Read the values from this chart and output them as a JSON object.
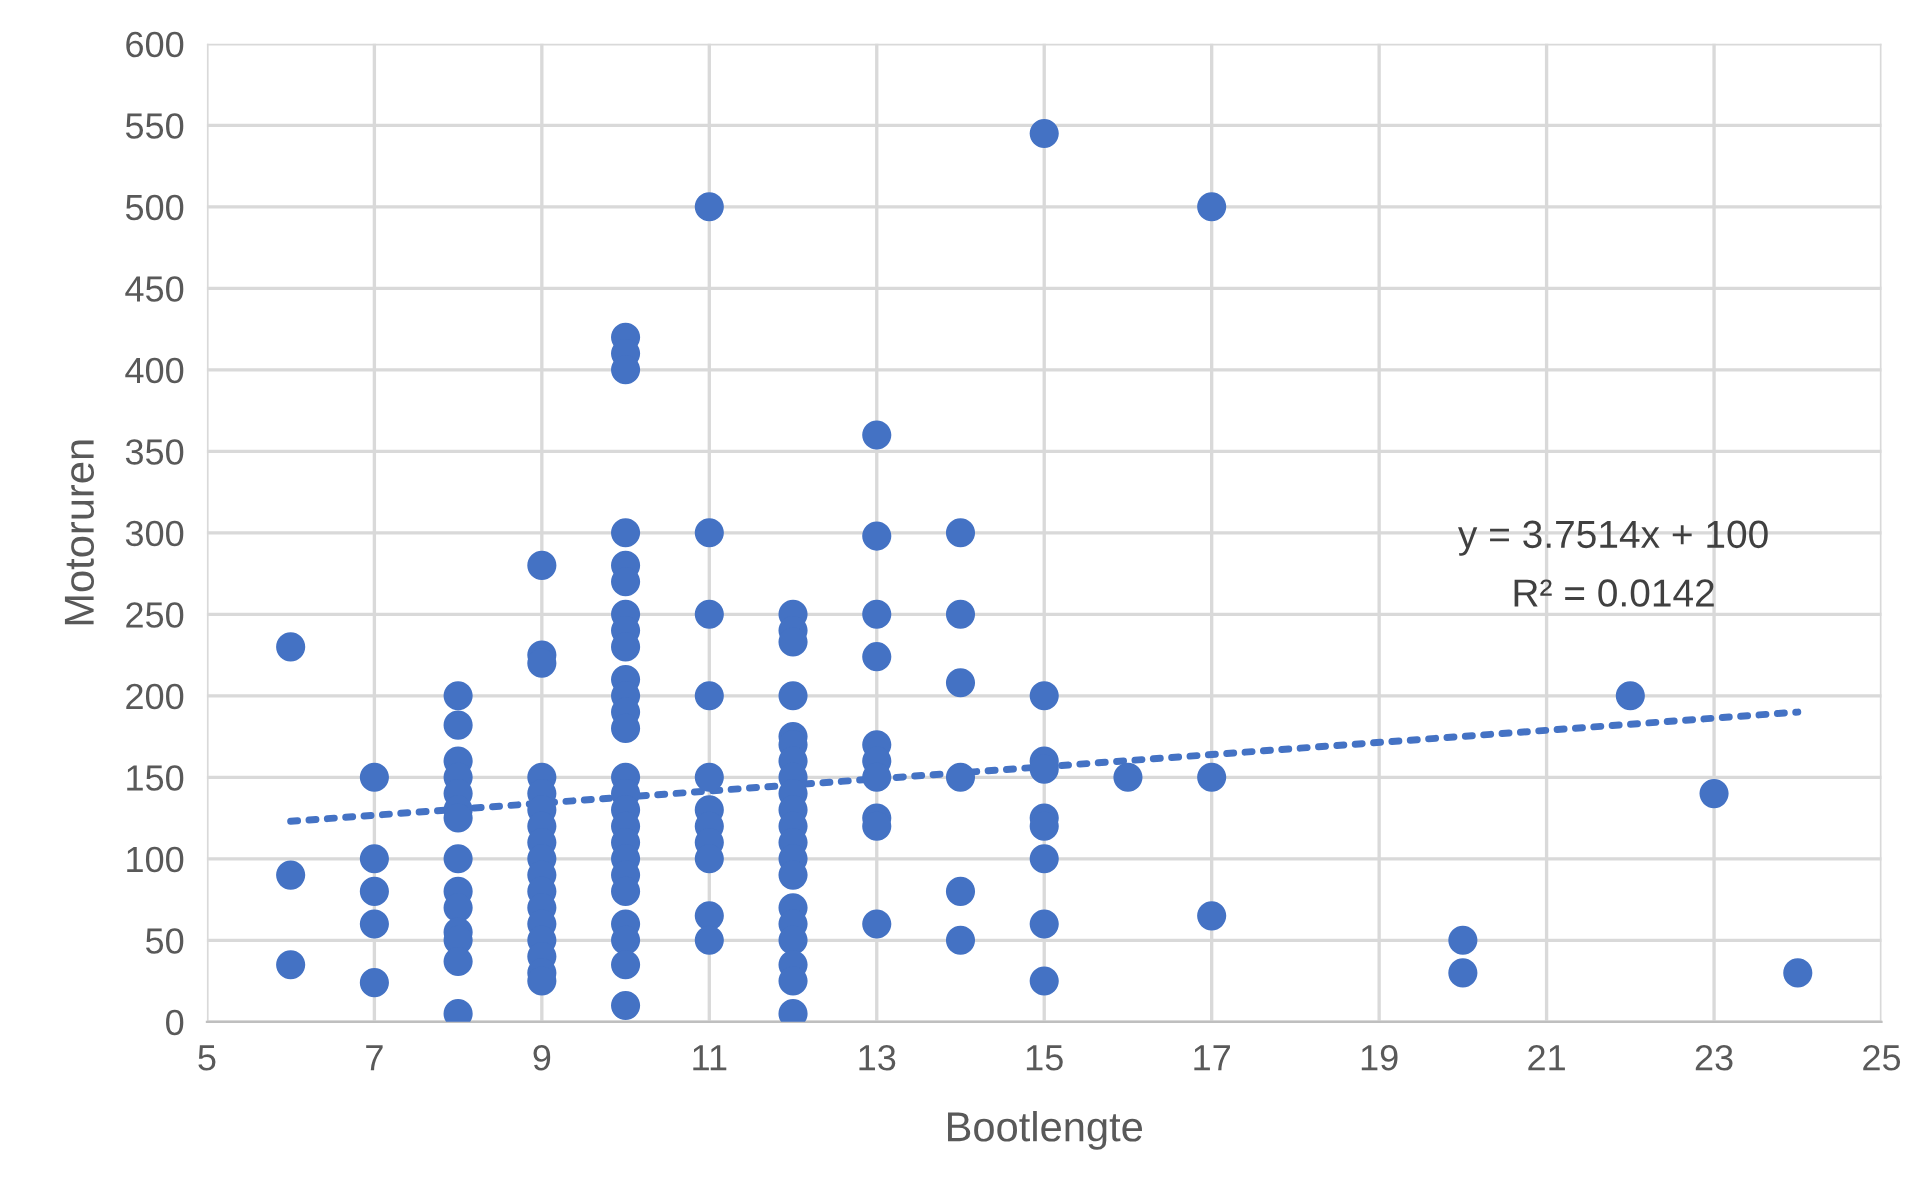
{
  "chart_data": {
    "type": "scatter",
    "xlabel": "Bootlengte",
    "ylabel": "Motoruren",
    "xlim": [
      5,
      25
    ],
    "xticks": [
      5,
      7,
      9,
      11,
      13,
      15,
      17,
      19,
      21,
      23,
      25
    ],
    "ylim": [
      0,
      600
    ],
    "yticks": [
      0,
      50,
      100,
      150,
      200,
      250,
      300,
      350,
      400,
      450,
      500,
      550,
      600
    ],
    "grid": true,
    "marker": "circle",
    "series": [
      {
        "color": "#4472c4",
        "x": [
          6,
          6,
          6,
          7,
          7,
          7,
          7,
          7,
          8,
          8,
          8,
          8,
          8,
          8,
          8,
          8,
          8,
          8,
          8,
          8,
          8,
          8,
          9,
          9,
          9,
          9,
          9,
          9,
          9,
          9,
          9,
          9,
          9,
          9,
          9,
          9,
          9,
          9,
          9,
          10,
          10,
          10,
          10,
          10,
          10,
          10,
          10,
          10,
          10,
          10,
          10,
          10,
          10,
          10,
          10,
          10,
          10,
          10,
          10,
          10,
          10,
          10,
          10,
          10,
          11,
          11,
          11,
          11,
          11,
          11,
          11,
          11,
          11,
          11,
          11,
          12,
          12,
          12,
          12,
          12,
          12,
          12,
          12,
          12,
          12,
          12,
          12,
          12,
          12,
          12,
          12,
          12,
          12,
          12,
          12,
          13,
          13,
          13,
          13,
          13,
          13,
          13,
          13,
          13,
          13,
          14,
          14,
          14,
          14,
          14,
          14,
          15,
          15,
          15,
          15,
          15,
          15,
          15,
          15,
          15,
          16,
          17,
          17,
          17,
          20,
          20,
          22,
          23,
          24
        ],
        "values": [
          230,
          90,
          35,
          150,
          100,
          80,
          60,
          24,
          200,
          182,
          160,
          150,
          140,
          130,
          125,
          100,
          80,
          70,
          55,
          50,
          37,
          5,
          280,
          225,
          220,
          150,
          140,
          130,
          120,
          110,
          100,
          90,
          80,
          70,
          60,
          50,
          40,
          30,
          25,
          420,
          410,
          400,
          300,
          280,
          270,
          250,
          240,
          230,
          210,
          200,
          190,
          180,
          150,
          140,
          130,
          120,
          110,
          100,
          90,
          80,
          60,
          50,
          35,
          10,
          500,
          300,
          250,
          200,
          150,
          130,
          120,
          110,
          100,
          65,
          50,
          250,
          240,
          233,
          200,
          175,
          170,
          160,
          150,
          140,
          130,
          120,
          110,
          100,
          90,
          70,
          60,
          50,
          35,
          25,
          5,
          360,
          298,
          250,
          224,
          170,
          160,
          150,
          125,
          120,
          60,
          300,
          250,
          208,
          150,
          80,
          50,
          545,
          200,
          160,
          155,
          125,
          120,
          100,
          60,
          25,
          150,
          500,
          150,
          65,
          50,
          30,
          200,
          140,
          30
        ]
      },
      {
        "type": "line",
        "color": "#4472c4",
        "line_style": "dotted",
        "marker": "none",
        "x": [
          6,
          24
        ],
        "values": [
          123,
          190
        ]
      }
    ],
    "annotations": [
      "y = 3.7514x + 100",
      "R² = 0.0142"
    ]
  }
}
